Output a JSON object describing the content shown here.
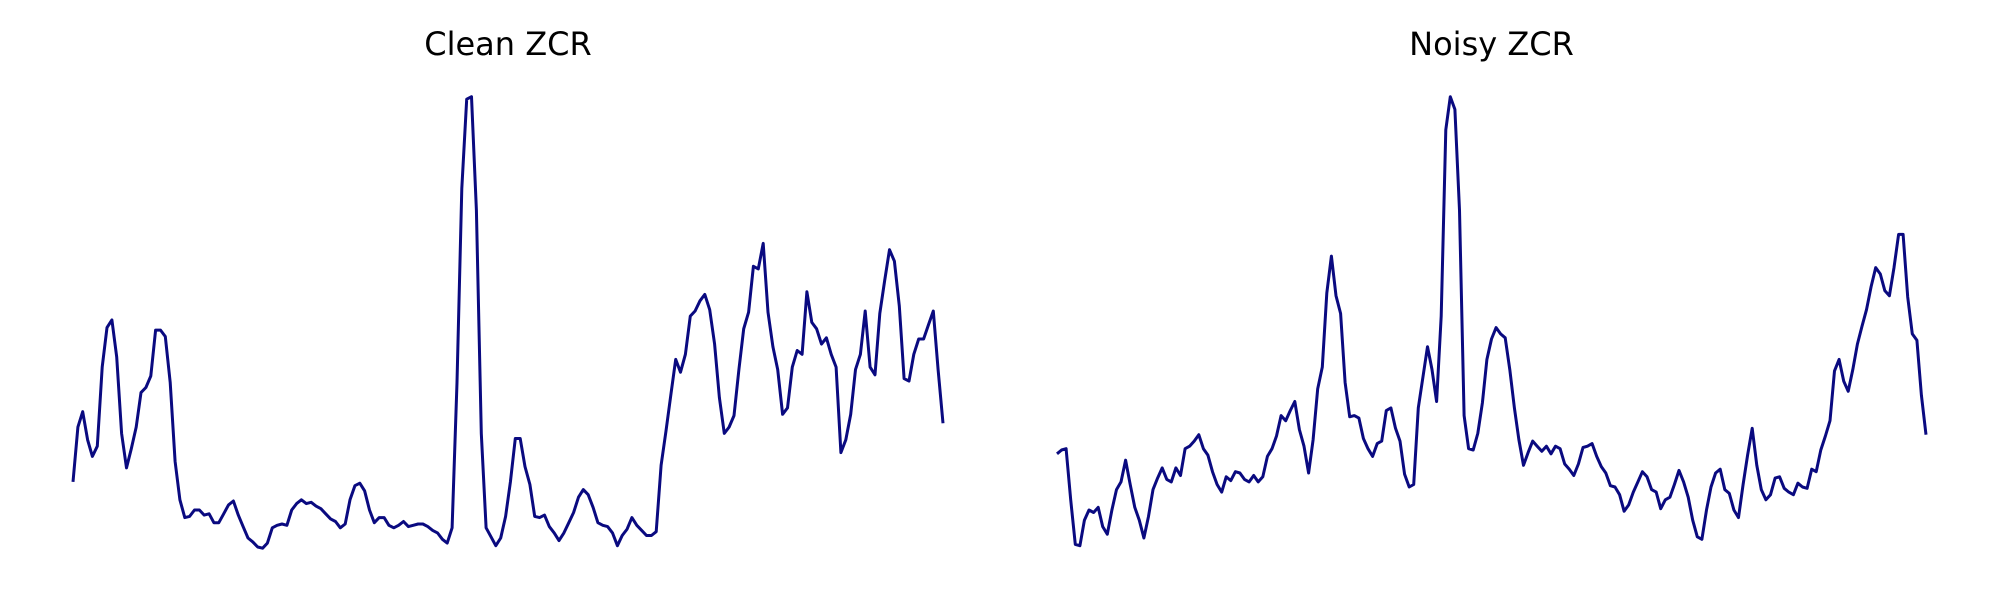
{
  "chart_data": [
    {
      "type": "line",
      "title": "Clean ZCR",
      "color": "#0a0a80",
      "ylim": [
        0,
        370
      ],
      "values": [
        62,
        105,
        117,
        95,
        82,
        90,
        152,
        183,
        189,
        160,
        100,
        73,
        88,
        105,
        132,
        136,
        145,
        181,
        181,
        176,
        140,
        78,
        48,
        34,
        35,
        40,
        40,
        36,
        37,
        30,
        30,
        37,
        44,
        47,
        36,
        27,
        18,
        15,
        11,
        10,
        14,
        26,
        28,
        29,
        28,
        40,
        45,
        48,
        45,
        46,
        43,
        41,
        37,
        33,
        31,
        26,
        29,
        48,
        59,
        61,
        55,
        40,
        30,
        34,
        34,
        28,
        26,
        28,
        31,
        27,
        28,
        29,
        29,
        27,
        24,
        22,
        17,
        14,
        26,
        140,
        292,
        362,
        364,
        275,
        100,
        26,
        19,
        12,
        18,
        35,
        62,
        96,
        96,
        74,
        60,
        35,
        34,
        36,
        27,
        22,
        16,
        22,
        30,
        38,
        50,
        56,
        52,
        42,
        30,
        28,
        27,
        22,
        12,
        20,
        25,
        34,
        28,
        24,
        20,
        20,
        23,
        75,
        102,
        130,
        158,
        148,
        162,
        192,
        196,
        204,
        209,
        197,
        170,
        128,
        100,
        105,
        114,
        150,
        182,
        195,
        231,
        229,
        249,
        195,
        168,
        150,
        115,
        120,
        152,
        165,
        162,
        211,
        187,
        182,
        170,
        175,
        162,
        152,
        85,
        95,
        115,
        150,
        162,
        196,
        152,
        146,
        194,
        220,
        244,
        235,
        200,
        143,
        141,
        162,
        174,
        174,
        185,
        196,
        150,
        108
      ]
    },
    {
      "type": "line",
      "title": "Noisy ZCR",
      "color": "#0a0a80",
      "ylim": [
        0,
        370
      ],
      "values": [
        84,
        87,
        88,
        48,
        13,
        12,
        32,
        40,
        38,
        42,
        27,
        21,
        40,
        56,
        62,
        79,
        60,
        42,
        32,
        18,
        35,
        56,
        65,
        73,
        64,
        62,
        73,
        67,
        88,
        90,
        94,
        99,
        88,
        83,
        70,
        60,
        54,
        66,
        63,
        70,
        69,
        64,
        62,
        67,
        62,
        66,
        82,
        88,
        98,
        114,
        110,
        118,
        125,
        103,
        90,
        69,
        95,
        135,
        152,
        210,
        239,
        208,
        194,
        140,
        113,
        114,
        112,
        96,
        88,
        82,
        92,
        94,
        118,
        120,
        104,
        94,
        68,
        58,
        60,
        120,
        144,
        168,
        150,
        125,
        192,
        338,
        364,
        354,
        275,
        114,
        88,
        87,
        100,
        124,
        158,
        174,
        183,
        178,
        175,
        150,
        120,
        95,
        75,
        85,
        94,
        90,
        86,
        90,
        84,
        90,
        88,
        76,
        72,
        67,
        76,
        89,
        90,
        92,
        82,
        74,
        69,
        59,
        58,
        52,
        39,
        44,
        54,
        62,
        70,
        66,
        56,
        54,
        41,
        48,
        50,
        60,
        71,
        62,
        50,
        32,
        19,
        17,
        40,
        58,
        69,
        72,
        56,
        53,
        40,
        34,
        60,
        83,
        104,
        75,
        56,
        48,
        52,
        65,
        66,
        57,
        54,
        52,
        61,
        58,
        57,
        72,
        70,
        87,
        98,
        110,
        149,
        158,
        141,
        133,
        150,
        170,
        184,
        197,
        215,
        230,
        225,
        212,
        208,
        230,
        256,
        256,
        207,
        178,
        173,
        130,
        99
      ]
    }
  ]
}
